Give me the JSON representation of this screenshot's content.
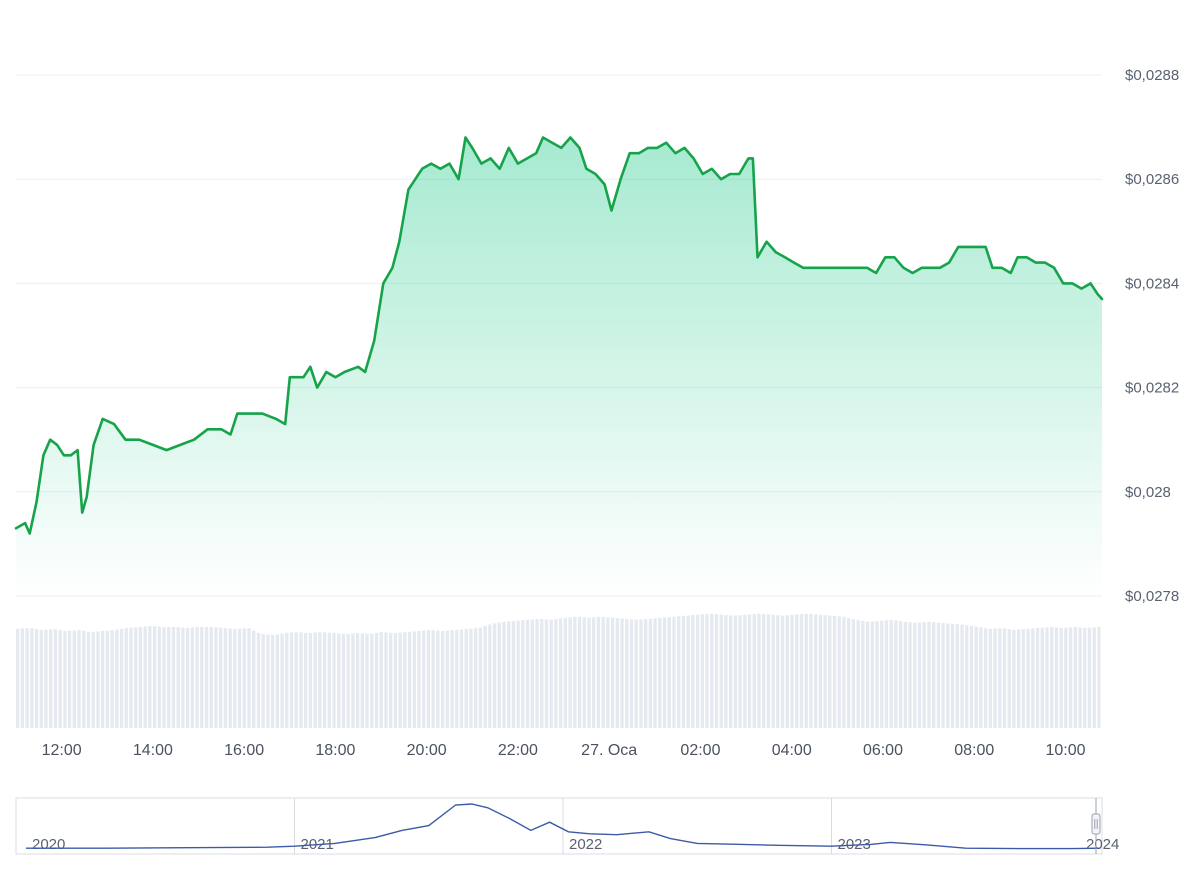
{
  "chart_data": {
    "type": "area",
    "currency_prefix": "$",
    "decimal_separator": ",",
    "y_ticks": [
      "$0,0288",
      "$0,0286",
      "$0,0284",
      "$0,0282",
      "$0,028",
      "$0,0278"
    ],
    "y_tick_values": [
      0.0288,
      0.0286,
      0.0284,
      0.0282,
      0.028,
      0.0278
    ],
    "ylim": [
      0.0278,
      0.0288
    ],
    "x_ticks": [
      "12:00",
      "14:00",
      "16:00",
      "18:00",
      "20:00",
      "22:00",
      "27. Oca",
      "02:00",
      "04:00",
      "06:00",
      "08:00",
      "10:00"
    ],
    "x_tick_hours": [
      12,
      14,
      16,
      18,
      20,
      22,
      24,
      26,
      28,
      30,
      32,
      34
    ],
    "xlim_hours": [
      11.0,
      34.8
    ],
    "grid": true,
    "line_color": "#16a34a",
    "fill_color": "#16c784",
    "volume_color": "#cfd8e3",
    "series": [
      {
        "points": [
          [
            11.0,
            0.02793
          ],
          [
            11.2,
            0.02794
          ],
          [
            11.3,
            0.02792
          ],
          [
            11.45,
            0.02798
          ],
          [
            11.6,
            0.02807
          ],
          [
            11.75,
            0.0281
          ],
          [
            11.9,
            0.02809
          ],
          [
            12.05,
            0.02807
          ],
          [
            12.2,
            0.02807
          ],
          [
            12.35,
            0.02808
          ],
          [
            12.45,
            0.02796
          ],
          [
            12.55,
            0.02799
          ],
          [
            12.7,
            0.02809
          ],
          [
            12.9,
            0.02814
          ],
          [
            13.15,
            0.02813
          ],
          [
            13.4,
            0.0281
          ],
          [
            13.7,
            0.0281
          ],
          [
            14.0,
            0.02809
          ],
          [
            14.3,
            0.02808
          ],
          [
            14.6,
            0.02809
          ],
          [
            14.9,
            0.0281
          ],
          [
            15.2,
            0.02812
          ],
          [
            15.5,
            0.02812
          ],
          [
            15.7,
            0.02811
          ],
          [
            15.85,
            0.02815
          ],
          [
            16.1,
            0.02815
          ],
          [
            16.4,
            0.02815
          ],
          [
            16.7,
            0.02814
          ],
          [
            16.9,
            0.02813
          ],
          [
            17.0,
            0.02822
          ],
          [
            17.3,
            0.02822
          ],
          [
            17.45,
            0.02824
          ],
          [
            17.6,
            0.0282
          ],
          [
            17.8,
            0.02823
          ],
          [
            18.0,
            0.02822
          ],
          [
            18.2,
            0.02823
          ],
          [
            18.5,
            0.02824
          ],
          [
            18.65,
            0.02823
          ],
          [
            18.85,
            0.02829
          ],
          [
            19.05,
            0.0284
          ],
          [
            19.25,
            0.02843
          ],
          [
            19.4,
            0.02848
          ],
          [
            19.6,
            0.02858
          ],
          [
            19.75,
            0.0286
          ],
          [
            19.9,
            0.02862
          ],
          [
            20.1,
            0.02863
          ],
          [
            20.3,
            0.02862
          ],
          [
            20.5,
            0.02863
          ],
          [
            20.7,
            0.0286
          ],
          [
            20.85,
            0.02868
          ],
          [
            21.0,
            0.02866
          ],
          [
            21.2,
            0.02863
          ],
          [
            21.4,
            0.02864
          ],
          [
            21.6,
            0.02862
          ],
          [
            21.8,
            0.02866
          ],
          [
            22.0,
            0.02863
          ],
          [
            22.2,
            0.02864
          ],
          [
            22.4,
            0.02865
          ],
          [
            22.55,
            0.02868
          ],
          [
            22.75,
            0.02867
          ],
          [
            22.95,
            0.02866
          ],
          [
            23.15,
            0.02868
          ],
          [
            23.35,
            0.02866
          ],
          [
            23.5,
            0.02862
          ],
          [
            23.7,
            0.02861
          ],
          [
            23.9,
            0.02859
          ],
          [
            24.05,
            0.02854
          ],
          [
            24.25,
            0.0286
          ],
          [
            24.45,
            0.02865
          ],
          [
            24.65,
            0.02865
          ],
          [
            24.85,
            0.02866
          ],
          [
            25.05,
            0.02866
          ],
          [
            25.25,
            0.02867
          ],
          [
            25.45,
            0.02865
          ],
          [
            25.65,
            0.02866
          ],
          [
            25.85,
            0.02864
          ],
          [
            26.05,
            0.02861
          ],
          [
            26.25,
            0.02862
          ],
          [
            26.45,
            0.0286
          ],
          [
            26.65,
            0.02861
          ],
          [
            26.85,
            0.02861
          ],
          [
            27.05,
            0.02864
          ],
          [
            27.15,
            0.02864
          ],
          [
            27.25,
            0.02845
          ],
          [
            27.45,
            0.02848
          ],
          [
            27.65,
            0.02846
          ],
          [
            27.85,
            0.02845
          ],
          [
            28.05,
            0.02844
          ],
          [
            28.25,
            0.02843
          ],
          [
            28.45,
            0.02843
          ],
          [
            28.65,
            0.02843
          ],
          [
            28.85,
            0.02843
          ],
          [
            29.05,
            0.02843
          ],
          [
            29.25,
            0.02843
          ],
          [
            29.45,
            0.02843
          ],
          [
            29.65,
            0.02843
          ],
          [
            29.85,
            0.02842
          ],
          [
            30.05,
            0.02845
          ],
          [
            30.25,
            0.02845
          ],
          [
            30.45,
            0.02843
          ],
          [
            30.65,
            0.02842
          ],
          [
            30.85,
            0.02843
          ],
          [
            31.05,
            0.02843
          ],
          [
            31.25,
            0.02843
          ],
          [
            31.45,
            0.02844
          ],
          [
            31.65,
            0.02847
          ],
          [
            31.85,
            0.02847
          ],
          [
            32.05,
            0.02847
          ],
          [
            32.25,
            0.02847
          ],
          [
            32.4,
            0.02843
          ],
          [
            32.6,
            0.02843
          ],
          [
            32.8,
            0.02842
          ],
          [
            32.95,
            0.02845
          ],
          [
            33.15,
            0.02845
          ],
          [
            33.35,
            0.02844
          ],
          [
            33.55,
            0.02844
          ],
          [
            33.75,
            0.02843
          ],
          [
            33.95,
            0.0284
          ],
          [
            34.15,
            0.0284
          ],
          [
            34.35,
            0.02839
          ],
          [
            34.55,
            0.0284
          ],
          [
            34.7,
            0.02838
          ],
          [
            34.8,
            0.02837
          ]
        ]
      }
    ],
    "volume_levels": [
      0.97,
      0.98,
      0.96,
      0.97,
      0.95,
      0.96,
      0.94,
      0.95,
      0.96,
      0.98,
      0.99,
      1.0,
      0.99,
      0.99,
      0.98,
      0.99,
      0.99,
      0.98,
      0.97,
      0.98,
      0.92,
      0.91,
      0.93,
      0.94,
      0.93,
      0.94,
      0.93,
      0.92,
      0.93,
      0.92,
      0.94,
      0.93,
      0.94,
      0.95,
      0.96,
      0.95,
      0.96,
      0.97,
      0.98,
      1.02,
      1.04,
      1.05,
      1.06,
      1.07,
      1.06,
      1.08,
      1.09,
      1.08,
      1.09,
      1.08,
      1.07,
      1.06,
      1.07,
      1.08,
      1.09,
      1.1,
      1.11,
      1.12,
      1.11,
      1.1,
      1.11,
      1.12,
      1.11,
      1.1,
      1.11,
      1.12,
      1.11,
      1.1,
      1.09,
      1.06,
      1.04,
      1.05,
      1.06,
      1.04,
      1.03,
      1.04,
      1.03,
      1.02,
      1.01,
      0.99,
      0.97,
      0.98,
      0.96,
      0.97,
      0.98,
      0.99,
      0.98,
      0.99,
      0.98,
      0.99
    ],
    "navigator": {
      "year_labels": [
        "2020",
        "2021",
        "2022",
        "2023",
        "2024"
      ],
      "year_start": 2020.0,
      "year_end": 2024.0,
      "line_color": "#3d5aa8",
      "series": [
        [
          2020.0,
          0.08
        ],
        [
          2020.3,
          0.08
        ],
        [
          2020.6,
          0.09
        ],
        [
          2020.9,
          0.1
        ],
        [
          2021.0,
          0.12
        ],
        [
          2021.15,
          0.18
        ],
        [
          2021.3,
          0.3
        ],
        [
          2021.4,
          0.45
        ],
        [
          2021.5,
          0.55
        ],
        [
          2021.6,
          0.98
        ],
        [
          2021.66,
          1.0
        ],
        [
          2021.72,
          0.92
        ],
        [
          2021.8,
          0.7
        ],
        [
          2021.88,
          0.45
        ],
        [
          2021.95,
          0.62
        ],
        [
          2022.02,
          0.42
        ],
        [
          2022.1,
          0.38
        ],
        [
          2022.2,
          0.36
        ],
        [
          2022.32,
          0.42
        ],
        [
          2022.4,
          0.28
        ],
        [
          2022.5,
          0.18
        ],
        [
          2022.65,
          0.16
        ],
        [
          2022.8,
          0.14
        ],
        [
          2023.0,
          0.12
        ],
        [
          2023.15,
          0.16
        ],
        [
          2023.22,
          0.2
        ],
        [
          2023.35,
          0.15
        ],
        [
          2023.5,
          0.08
        ],
        [
          2023.7,
          0.07
        ],
        [
          2023.9,
          0.07
        ],
        [
          2024.0,
          0.08
        ]
      ]
    }
  }
}
